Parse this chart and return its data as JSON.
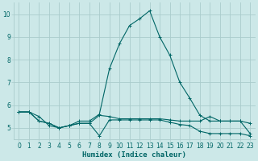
{
  "xlabel": "Humidex (Indice chaleur)",
  "background_color": "#cce8e8",
  "grid_color": "#aacccc",
  "line_color": "#006666",
  "xlim": [
    -0.5,
    23.5
  ],
  "ylim": [
    4.5,
    10.5
  ],
  "yticks": [
    5,
    6,
    7,
    8,
    9,
    10
  ],
  "xticks": [
    0,
    1,
    2,
    3,
    4,
    5,
    6,
    7,
    8,
    9,
    10,
    11,
    12,
    13,
    14,
    15,
    16,
    17,
    18,
    19,
    20,
    21,
    22,
    23
  ],
  "line1_x": [
    0,
    1,
    2,
    3,
    4,
    5,
    6,
    7,
    8,
    9,
    10,
    11,
    12,
    13,
    14,
    15,
    16,
    17,
    18,
    19,
    20,
    21,
    22,
    23
  ],
  "line1_y": [
    5.7,
    5.7,
    5.5,
    5.1,
    5.0,
    5.1,
    5.3,
    5.3,
    5.6,
    7.6,
    8.7,
    9.5,
    9.8,
    10.15,
    9.0,
    8.2,
    7.0,
    6.3,
    5.55,
    5.3,
    5.3,
    5.3,
    5.3,
    4.75
  ],
  "line2_x": [
    0,
    1,
    2,
    3,
    4,
    5,
    6,
    7,
    8,
    9,
    10,
    11,
    12,
    13,
    14,
    15,
    16,
    17,
    18,
    19,
    20,
    21,
    22,
    23
  ],
  "line2_y": [
    5.7,
    5.7,
    5.3,
    5.2,
    5.0,
    5.1,
    5.2,
    5.2,
    4.65,
    5.35,
    5.35,
    5.35,
    5.35,
    5.35,
    5.35,
    5.25,
    5.15,
    5.1,
    4.85,
    4.75,
    4.75,
    4.75,
    4.75,
    4.65
  ],
  "line3_x": [
    0,
    1,
    2,
    3,
    4,
    5,
    6,
    7,
    8,
    9,
    10,
    11,
    12,
    13,
    14,
    15,
    16,
    17,
    18,
    19,
    20,
    21,
    22,
    23
  ],
  "line3_y": [
    5.7,
    5.7,
    5.3,
    5.2,
    5.0,
    5.1,
    5.2,
    5.2,
    5.55,
    5.5,
    5.4,
    5.4,
    5.4,
    5.4,
    5.4,
    5.35,
    5.3,
    5.3,
    5.3,
    5.5,
    5.3,
    5.3,
    5.3,
    5.2
  ]
}
